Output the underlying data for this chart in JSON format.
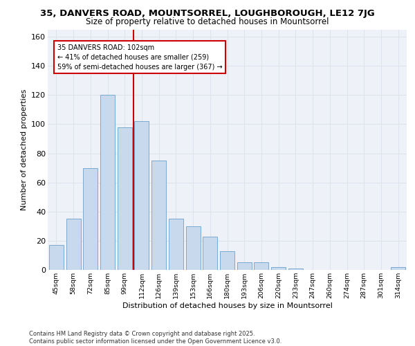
{
  "title_line1": "35, DANVERS ROAD, MOUNTSORREL, LOUGHBOROUGH, LE12 7JG",
  "title_line2": "Size of property relative to detached houses in Mountsorrel",
  "xlabel": "Distribution of detached houses by size in Mountsorrel",
  "ylabel": "Number of detached properties",
  "bar_color": "#c8d9ee",
  "bar_edge_color": "#7aaad0",
  "categories": [
    "45sqm",
    "58sqm",
    "72sqm",
    "85sqm",
    "99sqm",
    "112sqm",
    "126sqm",
    "139sqm",
    "153sqm",
    "166sqm",
    "180sqm",
    "193sqm",
    "206sqm",
    "220sqm",
    "233sqm",
    "247sqm",
    "260sqm",
    "274sqm",
    "287sqm",
    "301sqm",
    "314sqm"
  ],
  "values": [
    17,
    35,
    70,
    120,
    98,
    102,
    75,
    35,
    30,
    23,
    13,
    5,
    5,
    2,
    1,
    0,
    0,
    0,
    0,
    0,
    2
  ],
  "vline_x": 4.5,
  "vline_color": "#cc0000",
  "annotation_text": "35 DANVERS ROAD: 102sqm\n← 41% of detached houses are smaller (259)\n59% of semi-detached houses are larger (367) →",
  "ylim": [
    0,
    165
  ],
  "yticks": [
    0,
    20,
    40,
    60,
    80,
    100,
    120,
    140,
    160
  ],
  "grid_color": "#dde3ee",
  "bg_color": "#eef2f8",
  "footer_text": "Contains HM Land Registry data © Crown copyright and database right 2025.\nContains public sector information licensed under the Open Government Licence v3.0.",
  "title_fontsize": 9.5,
  "subtitle_fontsize": 8.5,
  "bar_width": 0.85
}
